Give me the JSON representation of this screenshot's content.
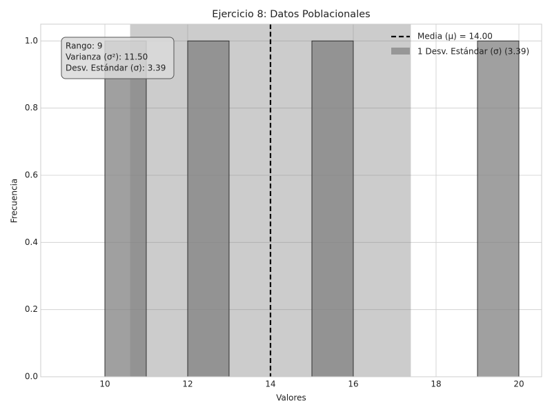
{
  "chart_data": {
    "type": "histogram",
    "title": "Ejercicio 8: Datos Poblacionales",
    "xlabel": "Valores",
    "ylabel": "Frecuencia",
    "bins": [
      9,
      10,
      11,
      12,
      13,
      14,
      15,
      16,
      17,
      18,
      19,
      20
    ],
    "values": [
      0,
      1,
      0,
      1,
      0,
      0,
      1,
      0,
      0,
      0,
      1
    ],
    "color": "#808080",
    "mean": 14,
    "std": 3.39,
    "mean_color": "#000000",
    "band_color": "#808080",
    "legend": [
      "Media (μ) = 14.00",
      "1 Desv. Estándar (σ) (3.39)"
    ],
    "legend_position": "upper right",
    "annotation": [
      "Rango: 9",
      "Varianza (σ²): 11.50",
      "Desv. Estándar (σ): 3.39"
    ],
    "xlim": [
      8.45,
      20.55
    ],
    "ylim": [
      0,
      1.05
    ],
    "xticks": [
      10,
      12,
      14,
      16,
      18,
      20
    ],
    "yticks": [
      {
        "value": 0,
        "label": "0.0"
      },
      0.2,
      0.4,
      0.6,
      0.8,
      {
        "value": 1,
        "label": "1.0"
      }
    ],
    "grid": true
  }
}
